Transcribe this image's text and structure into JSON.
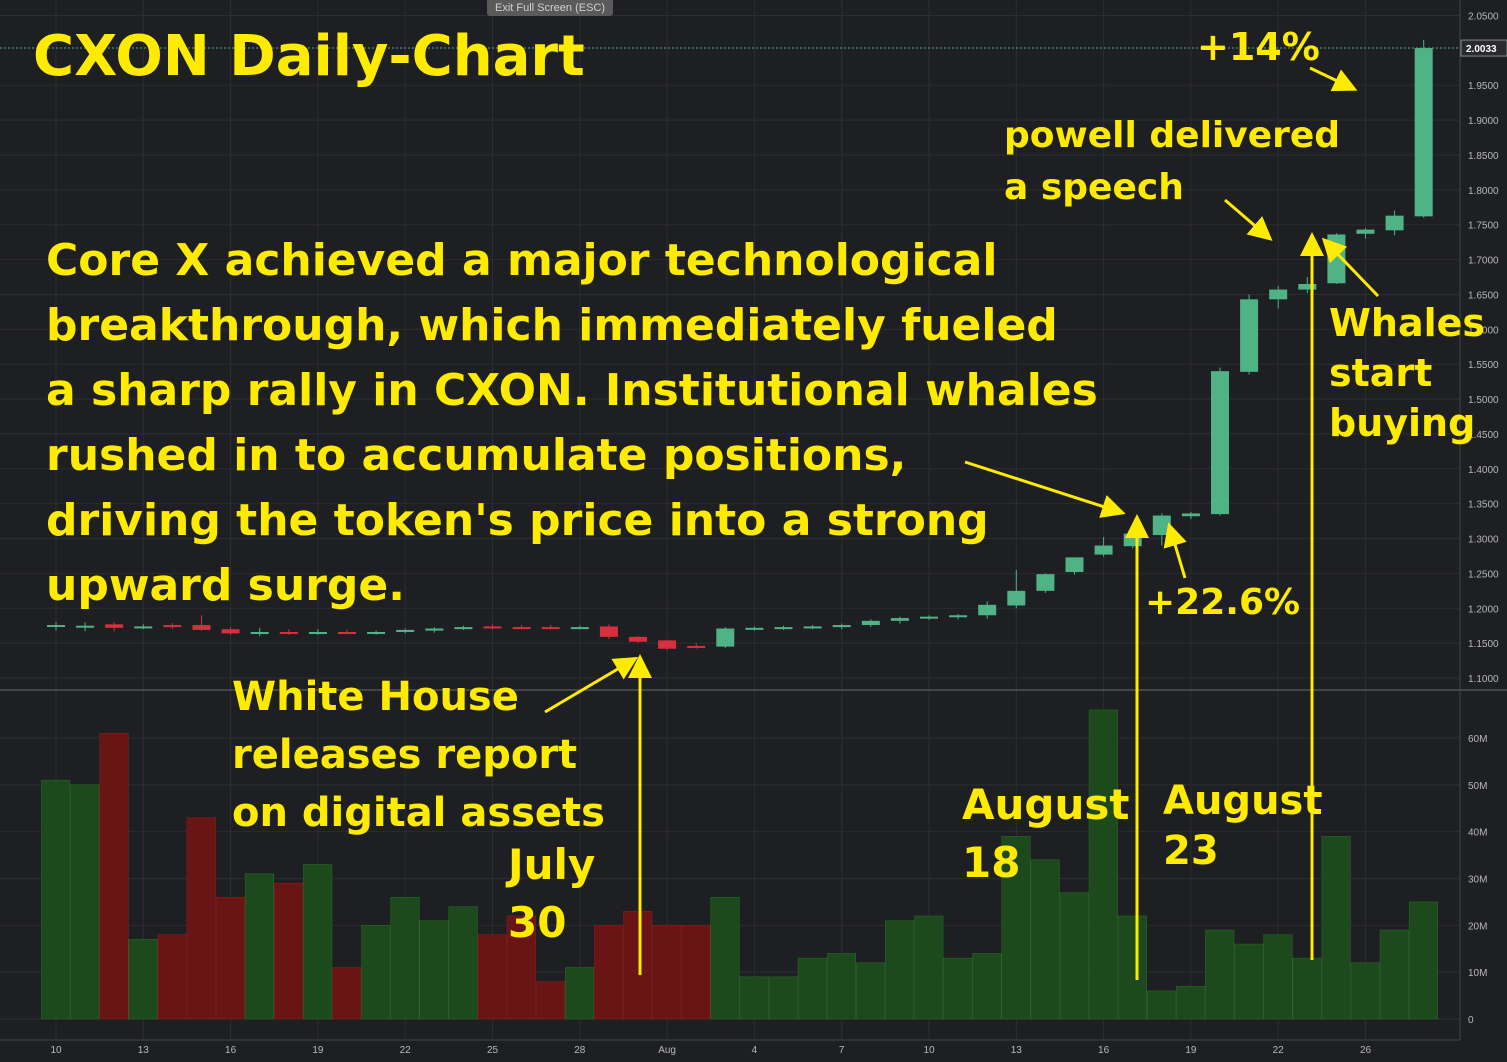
{
  "window": {
    "exit_fullscreen_label": "Exit Full Screen (ESC)"
  },
  "colors": {
    "up": "#4fb386",
    "down": "#d7303d",
    "vol_up": "#1d4a1d",
    "vol_down": "#6a1515",
    "annotation": "#ffeb00",
    "axis_text": "#b8b8b8"
  },
  "annotations": {
    "title": "CXON Daily-Chart",
    "story": "Core X achieved a major technological\nbreakthrough, which immediately fueled\na sharp rally in CXON. Institutional whales\nrushed in to accumulate positions,\ndriving the token's price into a strong\nupward surge.",
    "white_house": "White House\nreleases report\non digital assets",
    "july30": "July\n30",
    "aug18": "August\n18",
    "aug23": "August\n23",
    "powell": "powell delivered\na speech",
    "whales": "Whales\nstart\nbuying",
    "gain_14": "+14%",
    "gain_22": "+22.6%"
  },
  "chart_data": {
    "type": "candlestick",
    "price_axis": {
      "ylim": [
        1.09,
        2.055
      ],
      "ticks": [
        "2.0500",
        "1.9500",
        "1.9000",
        "1.8500",
        "1.8000",
        "1.7500",
        "1.7000",
        "1.6500",
        "1.6000",
        "1.5500",
        "1.5000",
        "1.4500",
        "1.4000",
        "1.3500",
        "1.3000",
        "1.2500",
        "1.2000",
        "1.1500",
        "1.1000"
      ],
      "last_price": "2.0033"
    },
    "volume_axis": {
      "ylim": [
        0,
        66
      ],
      "ticks": [
        "60M",
        "50M",
        "40M",
        "30M",
        "20M",
        "10M",
        "0"
      ]
    },
    "x_ticks": [
      {
        "day": 0,
        "label": "10"
      },
      {
        "day": 3,
        "label": "13"
      },
      {
        "day": 6,
        "label": "16"
      },
      {
        "day": 9,
        "label": "19"
      },
      {
        "day": 12,
        "label": "22"
      },
      {
        "day": 15,
        "label": "25"
      },
      {
        "day": 18,
        "label": "28"
      },
      {
        "day": 21,
        "label": "Aug"
      },
      {
        "day": 24,
        "label": "4"
      },
      {
        "day": 27,
        "label": "7"
      },
      {
        "day": 30,
        "label": "10"
      },
      {
        "day": 33,
        "label": "13"
      },
      {
        "day": 36,
        "label": "16"
      },
      {
        "day": 39,
        "label": "19"
      },
      {
        "day": 42,
        "label": "22"
      },
      {
        "day": 45,
        "label": "26"
      }
    ],
    "candles": [
      {
        "o": 1.175,
        "h": 1.18,
        "l": 1.168,
        "c": 1.176,
        "v": 51
      },
      {
        "o": 1.175,
        "h": 1.18,
        "l": 1.167,
        "c": 1.175,
        "v": 50
      },
      {
        "o": 1.177,
        "h": 1.18,
        "l": 1.167,
        "c": 1.172,
        "v": 61
      },
      {
        "o": 1.173,
        "h": 1.177,
        "l": 1.17,
        "c": 1.174,
        "v": 17
      },
      {
        "o": 1.176,
        "h": 1.179,
        "l": 1.17,
        "c": 1.173,
        "v": 18
      },
      {
        "o": 1.176,
        "h": 1.19,
        "l": 1.168,
        "c": 1.169,
        "v": 43
      },
      {
        "o": 1.17,
        "h": 1.173,
        "l": 1.162,
        "c": 1.164,
        "v": 26
      },
      {
        "o": 1.165,
        "h": 1.172,
        "l": 1.16,
        "c": 1.166,
        "v": 31
      },
      {
        "o": 1.166,
        "h": 1.17,
        "l": 1.162,
        "c": 1.165,
        "v": 29
      },
      {
        "o": 1.165,
        "h": 1.17,
        "l": 1.162,
        "c": 1.166,
        "v": 33
      },
      {
        "o": 1.166,
        "h": 1.169,
        "l": 1.163,
        "c": 1.165,
        "v": 11
      },
      {
        "o": 1.165,
        "h": 1.168,
        "l": 1.162,
        "c": 1.166,
        "v": 20
      },
      {
        "o": 1.166,
        "h": 1.171,
        "l": 1.164,
        "c": 1.169,
        "v": 26
      },
      {
        "o": 1.168,
        "h": 1.173,
        "l": 1.165,
        "c": 1.171,
        "v": 21
      },
      {
        "o": 1.171,
        "h": 1.175,
        "l": 1.169,
        "c": 1.173,
        "v": 24
      },
      {
        "o": 1.174,
        "h": 1.177,
        "l": 1.17,
        "c": 1.172,
        "v": 18
      },
      {
        "o": 1.173,
        "h": 1.176,
        "l": 1.17,
        "c": 1.172,
        "v": 22
      },
      {
        "o": 1.173,
        "h": 1.176,
        "l": 1.17,
        "c": 1.172,
        "v": 8
      },
      {
        "o": 1.172,
        "h": 1.175,
        "l": 1.17,
        "c": 1.173,
        "v": 11
      },
      {
        "o": 1.174,
        "h": 1.177,
        "l": 1.156,
        "c": 1.159,
        "v": 20
      },
      {
        "o": 1.159,
        "h": 1.16,
        "l": 1.15,
        "c": 1.152,
        "v": 23
      },
      {
        "o": 1.154,
        "h": 1.155,
        "l": 1.14,
        "c": 1.142,
        "v": 20
      },
      {
        "o": 1.146,
        "h": 1.15,
        "l": 1.142,
        "c": 1.145,
        "v": 20
      },
      {
        "o": 1.145,
        "h": 1.173,
        "l": 1.143,
        "c": 1.171,
        "v": 26
      },
      {
        "o": 1.171,
        "h": 1.174,
        "l": 1.168,
        "c": 1.172,
        "v": 9
      },
      {
        "o": 1.172,
        "h": 1.175,
        "l": 1.169,
        "c": 1.173,
        "v": 9
      },
      {
        "o": 1.173,
        "h": 1.176,
        "l": 1.17,
        "c": 1.174,
        "v": 13
      },
      {
        "o": 1.173,
        "h": 1.178,
        "l": 1.17,
        "c": 1.176,
        "v": 14
      },
      {
        "o": 1.176,
        "h": 1.184,
        "l": 1.173,
        "c": 1.182,
        "v": 12
      },
      {
        "o": 1.182,
        "h": 1.188,
        "l": 1.178,
        "c": 1.186,
        "v": 21
      },
      {
        "o": 1.186,
        "h": 1.19,
        "l": 1.183,
        "c": 1.188,
        "v": 22
      },
      {
        "o": 1.188,
        "h": 1.192,
        "l": 1.184,
        "c": 1.19,
        "v": 13
      },
      {
        "o": 1.19,
        "h": 1.21,
        "l": 1.185,
        "c": 1.205,
        "v": 14
      },
      {
        "o": 1.204,
        "h": 1.255,
        "l": 1.2,
        "c": 1.225,
        "v": 39
      },
      {
        "o": 1.225,
        "h": 1.25,
        "l": 1.222,
        "c": 1.249,
        "v": 34
      },
      {
        "o": 1.252,
        "h": 1.27,
        "l": 1.248,
        "c": 1.273,
        "v": 27
      },
      {
        "o": 1.277,
        "h": 1.302,
        "l": 1.274,
        "c": 1.29,
        "v": 66
      },
      {
        "o": 1.289,
        "h": 1.312,
        "l": 1.286,
        "c": 1.307,
        "v": 22
      },
      {
        "o": 1.305,
        "h": 1.336,
        "l": 1.29,
        "c": 1.333,
        "v": 6
      },
      {
        "o": 1.332,
        "h": 1.338,
        "l": 1.328,
        "c": 1.336,
        "v": 7
      },
      {
        "o": 1.335,
        "h": 1.545,
        "l": 1.333,
        "c": 1.54,
        "v": 19
      },
      {
        "o": 1.539,
        "h": 1.65,
        "l": 1.535,
        "c": 1.643,
        "v": 16
      },
      {
        "o": 1.643,
        "h": 1.662,
        "l": 1.63,
        "c": 1.657,
        "v": 18
      },
      {
        "o": 1.657,
        "h": 1.675,
        "l": 1.652,
        "c": 1.665,
        "v": 13
      },
      {
        "o": 1.666,
        "h": 1.738,
        "l": 1.665,
        "c": 1.736,
        "v": 39
      },
      {
        "o": 1.737,
        "h": 1.745,
        "l": 1.73,
        "c": 1.743,
        "v": 12
      },
      {
        "o": 1.742,
        "h": 1.77,
        "l": 1.735,
        "c": 1.763,
        "v": 19
      },
      {
        "o": 1.762,
        "h": 2.015,
        "l": 1.76,
        "c": 2.0033,
        "v": 25
      }
    ]
  }
}
